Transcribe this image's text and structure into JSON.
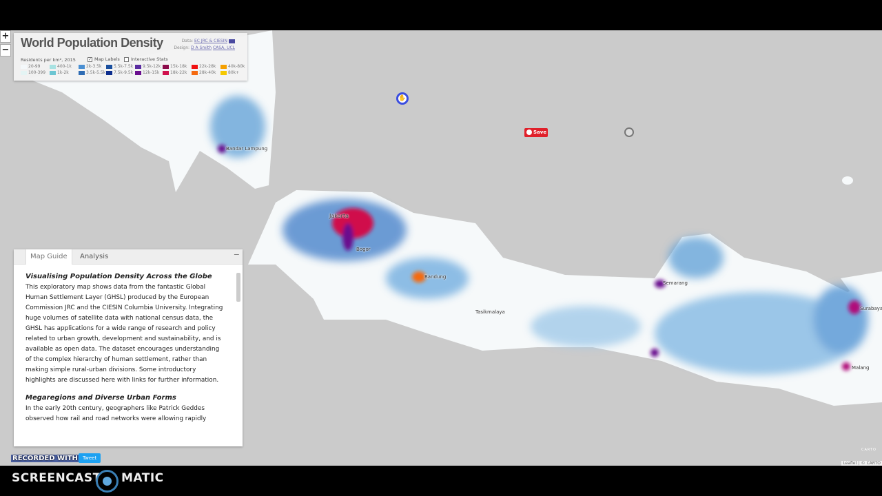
{
  "legend": {
    "title": "World Population Density",
    "data_credit_label": "Data:",
    "data_credit_link": "EC JRC & CIESIN",
    "design_credit_label": "Design:",
    "design_credit_author": "D A Smith",
    "design_credit_org": "CASA, UCL",
    "units": "Residents per km², 2015",
    "map_labels": {
      "label": "Map Labels",
      "checked": true
    },
    "interactive_stats": {
      "label": "Interactive Stats",
      "checked": false
    },
    "classes": [
      {
        "label": "20-99",
        "color": "#f4f8fa"
      },
      {
        "label": "100-399",
        "color": "#e4f4f4"
      },
      {
        "label": "400-1k",
        "color": "#a8e2e2"
      },
      {
        "label": "1k-2k",
        "color": "#6cc5d2"
      },
      {
        "label": "2k-3.5k",
        "color": "#4a8fd2"
      },
      {
        "label": "3.5k-5.5k",
        "color": "#2f6cb4"
      },
      {
        "label": "5.5k-7.5k",
        "color": "#1a4f9e"
      },
      {
        "label": "7.5k-9.5k",
        "color": "#0d2e8e"
      },
      {
        "label": "9.5k-12k",
        "color": "#5a2ca0"
      },
      {
        "label": "12k-15k",
        "color": "#6a0f8e"
      },
      {
        "label": "15k-18k",
        "color": "#8b0a4a"
      },
      {
        "label": "18k-22k",
        "color": "#d0104c"
      },
      {
        "label": "22k-28k",
        "color": "#f01010"
      },
      {
        "label": "28k-40k",
        "color": "#f56a10"
      },
      {
        "label": "40k-80k",
        "color": "#f5a000"
      },
      {
        "label": "80k+",
        "color": "#f5c800"
      }
    ]
  },
  "zoom": {
    "in": "+",
    "out": "−"
  },
  "cities": [
    {
      "name": "Bandar Lampung"
    },
    {
      "name": "Jakarta"
    },
    {
      "name": "Bogor"
    },
    {
      "name": "Bandung"
    },
    {
      "name": "Tasikmalaya"
    },
    {
      "name": "Semarang"
    },
    {
      "name": "Surabaya"
    },
    {
      "name": "Malang"
    }
  ],
  "panel": {
    "tabs": [
      {
        "label": "Map Guide",
        "active": true
      },
      {
        "label": "Analysis",
        "active": false
      }
    ],
    "collapse": "−",
    "sections": [
      {
        "heading": "Visualising Population Density Across the Globe",
        "body": "This exploratory map shows data from the fantastic Global Human Settlement Layer (GHSL) produced by the European Commission JRC and the CIESIN Columbia University. Integrating huge volumes of satellite data with national census data, the GHSL has applications for a wide range of research and policy related to urban growth, development and sustainability, and is available as open data. The dataset encourages understanding of the complex hierarchy of human settlement, rather than making simple rural-urban divisions. Some introductory highlights are discussed here with links for further information."
      },
      {
        "heading": "Megaregions and Diverse Urban Forms",
        "body": "In the early 20th century, geographers like Patrick Geddes observed how rail and road networks were allowing rapidly"
      }
    ]
  },
  "save_button": "Save",
  "recorded_with": "RECORDED WITH",
  "tweet_button": "Tweet",
  "attribution": "Leaflet | © CARTO",
  "carto": "CARTO",
  "screencast": {
    "left": "SCREENCAST",
    "right": "MATIC"
  }
}
